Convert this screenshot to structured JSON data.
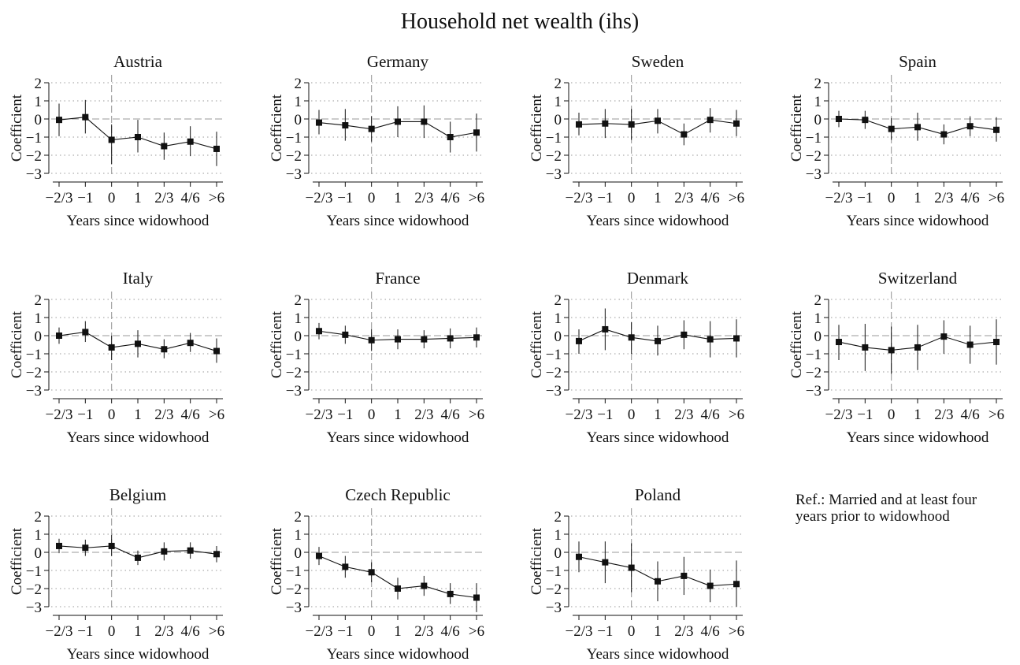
{
  "figure": {
    "title": "Household net wealth (ihs)",
    "note_line1": "Ref.: Married and at least four",
    "note_line2": "years prior to widowhood"
  },
  "style": {
    "marker_color": "#111111",
    "line_color": "#111111",
    "grid_color": "#9a9a9a",
    "refline_color": "#9a9a9a"
  },
  "chart_data": [
    {
      "type": "line",
      "title": "Austria",
      "xlabel": "Years since widowhood",
      "ylabel": "Coefficient",
      "categories": [
        "−2/3",
        "−1",
        "0",
        "1",
        "2/3",
        "4/6",
        ">6"
      ],
      "yticks": [
        2,
        1,
        0,
        -1,
        -2,
        -3
      ],
      "ylim": [
        -3,
        2
      ],
      "reference_category_index": 2,
      "grid": true,
      "values": [
        -0.05,
        0.1,
        -1.15,
        -1.0,
        -1.5,
        -1.25,
        -1.65
      ],
      "ci_low": [
        -0.95,
        -0.8,
        -2.5,
        -1.85,
        -2.25,
        -2.05,
        -2.6
      ],
      "ci_high": [
        0.85,
        1.05,
        -0.3,
        -0.05,
        -0.75,
        -0.4,
        -0.7
      ]
    },
    {
      "type": "line",
      "title": "Germany",
      "xlabel": "Years since widowhood",
      "ylabel": "Coefficient",
      "categories": [
        "−2/3",
        "−1",
        "0",
        "1",
        "2/3",
        "4/6",
        ">6"
      ],
      "yticks": [
        2,
        1,
        0,
        -1,
        -2,
        -3
      ],
      "ylim": [
        -3,
        2
      ],
      "reference_category_index": 2,
      "grid": true,
      "values": [
        -0.2,
        -0.35,
        -0.55,
        -0.15,
        -0.15,
        -1.0,
        -0.75
      ],
      "ci_low": [
        -0.85,
        -1.2,
        -1.25,
        -1.0,
        -1.05,
        -1.85,
        -1.8
      ],
      "ci_high": [
        0.5,
        0.55,
        0.15,
        0.7,
        0.75,
        -0.15,
        0.3
      ]
    },
    {
      "type": "line",
      "title": "Sweden",
      "xlabel": "Years since widowhood",
      "ylabel": "Coefficient",
      "categories": [
        "−2/3",
        "−1",
        "0",
        "1",
        "2/3",
        "4/6",
        ">6"
      ],
      "yticks": [
        2,
        1,
        0,
        -1,
        -2,
        -3
      ],
      "ylim": [
        -3,
        2
      ],
      "reference_category_index": 2,
      "grid": true,
      "values": [
        -0.3,
        -0.25,
        -0.3,
        -0.1,
        -0.85,
        -0.05,
        -0.25
      ],
      "ci_low": [
        -0.9,
        -1.05,
        -1.15,
        -0.8,
        -1.45,
        -0.75,
        -0.95
      ],
      "ci_high": [
        0.35,
        0.55,
        0.55,
        0.55,
        -0.25,
        0.6,
        0.5
      ]
    },
    {
      "type": "line",
      "title": "Spain",
      "xlabel": "Years since widowhood",
      "ylabel": "Coefficient",
      "categories": [
        "−2/3",
        "−1",
        "0",
        "1",
        "2/3",
        "4/6",
        ">6"
      ],
      "yticks": [
        2,
        1,
        0,
        -1,
        -2,
        -3
      ],
      "ylim": [
        -3,
        2
      ],
      "reference_category_index": 2,
      "grid": true,
      "values": [
        0.0,
        -0.05,
        -0.55,
        -0.45,
        -0.85,
        -0.4,
        -0.6
      ],
      "ci_low": [
        -0.45,
        -0.55,
        -1.15,
        -1.2,
        -1.4,
        -0.95,
        -1.25
      ],
      "ci_high": [
        0.45,
        0.45,
        0.05,
        0.35,
        -0.3,
        0.15,
        0.1
      ]
    },
    {
      "type": "line",
      "title": "Italy",
      "xlabel": "Years since widowhood",
      "ylabel": "Coefficient",
      "categories": [
        "−2/3",
        "−1",
        "0",
        "1",
        "2/3",
        "4/6",
        ">6"
      ],
      "yticks": [
        2,
        1,
        0,
        -1,
        -2,
        -3
      ],
      "ylim": [
        -3,
        2
      ],
      "reference_category_index": 2,
      "grid": true,
      "values": [
        0.0,
        0.2,
        -0.65,
        -0.45,
        -0.75,
        -0.4,
        -0.85
      ],
      "ci_low": [
        -0.45,
        -0.35,
        -1.35,
        -1.2,
        -1.25,
        -0.9,
        -1.5
      ],
      "ci_high": [
        0.45,
        0.8,
        0.0,
        0.3,
        -0.2,
        0.15,
        -0.15
      ]
    },
    {
      "type": "line",
      "title": "France",
      "xlabel": "Years since widowhood",
      "ylabel": "Coefficient",
      "categories": [
        "−2/3",
        "−1",
        "0",
        "1",
        "2/3",
        "4/6",
        ">6"
      ],
      "yticks": [
        2,
        1,
        0,
        -1,
        -2,
        -3
      ],
      "ylim": [
        -3,
        2
      ],
      "reference_category_index": 2,
      "grid": true,
      "values": [
        0.25,
        0.05,
        -0.25,
        -0.2,
        -0.2,
        -0.15,
        -0.1
      ],
      "ci_low": [
        -0.2,
        -0.45,
        -0.85,
        -0.75,
        -0.7,
        -0.7,
        -0.65
      ],
      "ci_high": [
        0.7,
        0.55,
        0.35,
        0.35,
        0.3,
        0.4,
        0.45
      ]
    },
    {
      "type": "line",
      "title": "Denmark",
      "xlabel": "Years since widowhood",
      "ylabel": "Coefficient",
      "categories": [
        "−2/3",
        "−1",
        "0",
        "1",
        "2/3",
        "4/6",
        ">6"
      ],
      "yticks": [
        2,
        1,
        0,
        -1,
        -2,
        -3
      ],
      "ylim": [
        -3,
        2
      ],
      "reference_category_index": 2,
      "grid": true,
      "values": [
        -0.3,
        0.35,
        -0.1,
        -0.3,
        0.05,
        -0.2,
        -0.15
      ],
      "ci_low": [
        -1.0,
        -0.8,
        -1.0,
        -1.1,
        -0.75,
        -1.2,
        -1.2
      ],
      "ci_high": [
        0.35,
        1.5,
        0.75,
        0.55,
        0.85,
        0.8,
        0.9
      ]
    },
    {
      "type": "line",
      "title": "Switzerland",
      "xlabel": "Years since widowhood",
      "ylabel": "Coefficient",
      "categories": [
        "−2/3",
        "−1",
        "0",
        "1",
        "2/3",
        "4/6",
        ">6"
      ],
      "yticks": [
        2,
        1,
        0,
        -1,
        -2,
        -3
      ],
      "ylim": [
        -3,
        2
      ],
      "reference_category_index": 2,
      "grid": true,
      "values": [
        -0.35,
        -0.65,
        -0.8,
        -0.65,
        -0.05,
        -0.5,
        -0.35
      ],
      "ci_low": [
        -1.35,
        -1.95,
        -2.1,
        -1.9,
        -1.0,
        -1.55,
        -1.6
      ],
      "ci_high": [
        0.6,
        0.65,
        0.5,
        0.6,
        0.85,
        0.55,
        0.9
      ]
    },
    {
      "type": "line",
      "title": "Belgium",
      "xlabel": "Years since widowhood",
      "ylabel": "Coefficient",
      "categories": [
        "−2/3",
        "−1",
        "0",
        "1",
        "2/3",
        "4/6",
        ">6"
      ],
      "yticks": [
        2,
        1,
        0,
        -1,
        -2,
        -3
      ],
      "ylim": [
        -3,
        2
      ],
      "reference_category_index": 2,
      "grid": true,
      "values": [
        0.35,
        0.25,
        0.35,
        -0.3,
        0.05,
        0.1,
        -0.1
      ],
      "ci_low": [
        -0.05,
        -0.2,
        -0.2,
        -0.7,
        -0.45,
        -0.35,
        -0.55
      ],
      "ci_high": [
        0.75,
        0.7,
        0.95,
        0.1,
        0.55,
        0.55,
        0.35
      ]
    },
    {
      "type": "line",
      "title": "Czech Republic",
      "xlabel": "Years since widowhood",
      "ylabel": "Coefficient",
      "categories": [
        "−2/3",
        "−1",
        "0",
        "1",
        "2/3",
        "4/6",
        ">6"
      ],
      "yticks": [
        2,
        1,
        0,
        -1,
        -2,
        -3
      ],
      "ylim": [
        -3,
        2
      ],
      "reference_category_index": 2,
      "grid": true,
      "values": [
        -0.2,
        -0.8,
        -1.1,
        -2.0,
        -1.85,
        -2.3,
        -2.5
      ],
      "ci_low": [
        -0.7,
        -1.4,
        -1.65,
        -2.6,
        -2.4,
        -2.85,
        -3.3
      ],
      "ci_high": [
        0.3,
        -0.2,
        -0.55,
        -1.4,
        -1.3,
        -1.7,
        -1.7
      ]
    },
    {
      "type": "line",
      "title": "Poland",
      "xlabel": "Years since widowhood",
      "ylabel": "Coefficient",
      "categories": [
        "−2/3",
        "−1",
        "0",
        "1",
        "2/3",
        "4/6",
        ">6"
      ],
      "yticks": [
        2,
        1,
        0,
        -1,
        -2,
        -3
      ],
      "ylim": [
        -3,
        2
      ],
      "reference_category_index": 2,
      "grid": true,
      "values": [
        -0.25,
        -0.55,
        -0.85,
        -1.6,
        -1.3,
        -1.85,
        -1.75
      ],
      "ci_low": [
        -1.1,
        -1.7,
        -2.2,
        -2.7,
        -2.35,
        -2.75,
        -3.0
      ],
      "ci_high": [
        0.6,
        0.6,
        0.5,
        -0.5,
        -0.25,
        -0.95,
        -0.45
      ]
    }
  ]
}
